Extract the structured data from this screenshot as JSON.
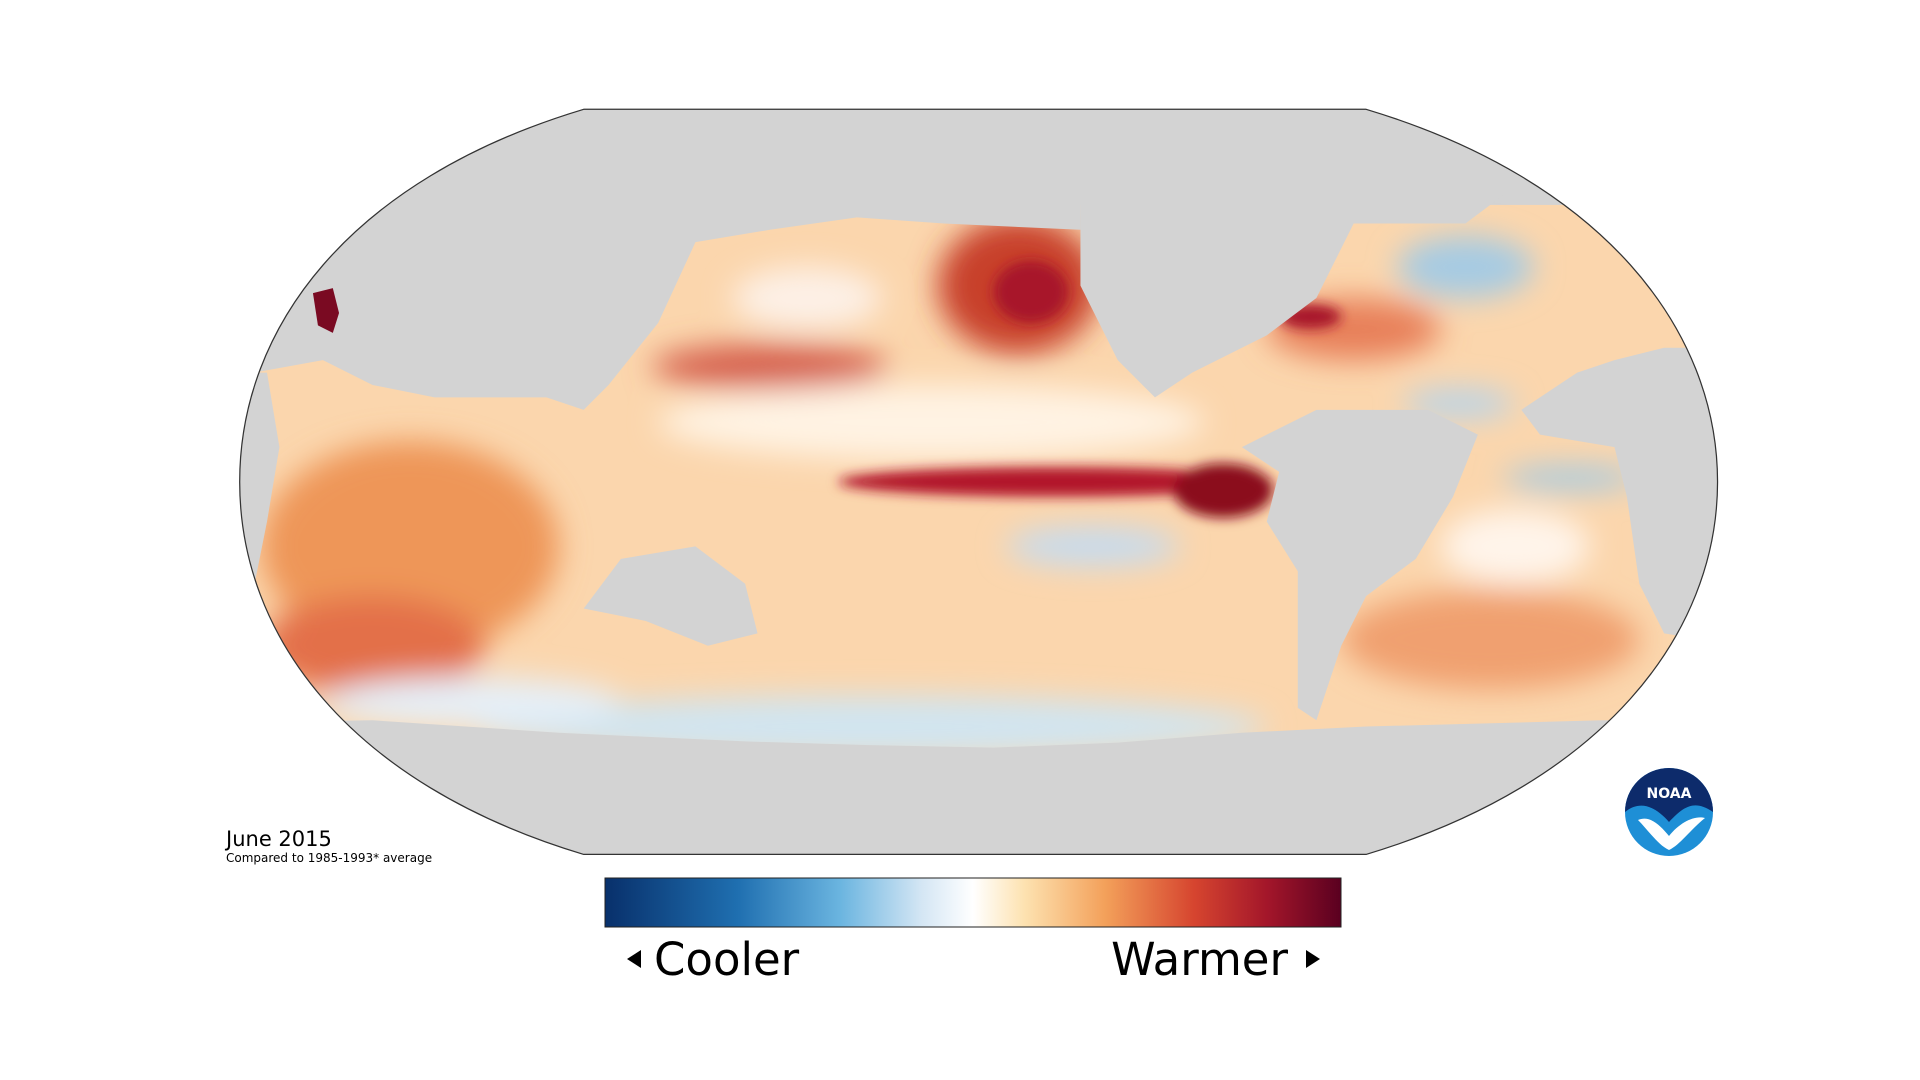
{
  "header": {
    "title": "June 2015",
    "subtitle": "Compared to 1985-1993* average"
  },
  "legend": {
    "low": "Cooler",
    "high": "Warmer"
  },
  "logo": {
    "label": "NOAA"
  }
}
